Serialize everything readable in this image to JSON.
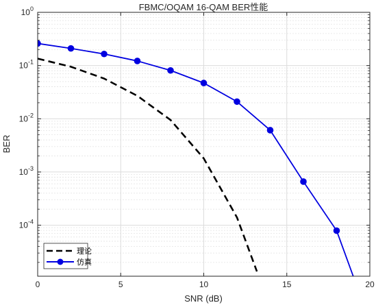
{
  "chart_data": {
    "type": "line",
    "title": "FBMC/OQAM 16-QAM BER性能",
    "xlabel": "SNR (dB)",
    "ylabel": "BER",
    "xlim": [
      0,
      20
    ],
    "ylim": [
      1.1e-05,
      1
    ],
    "yscale": "log",
    "grid": true,
    "legend_position": "bottom-left",
    "x_ticks": [
      0,
      5,
      10,
      15,
      20
    ],
    "y_ticks": [
      {
        "value": 1,
        "base": "10",
        "exp": "0"
      },
      {
        "value": 0.1,
        "base": "10",
        "exp": "-1"
      },
      {
        "value": 0.01,
        "base": "10",
        "exp": "-2"
      },
      {
        "value": 0.001,
        "base": "10",
        "exp": "-3"
      },
      {
        "value": 0.0001,
        "base": "10",
        "exp": "-4"
      }
    ],
    "series": [
      {
        "name": "理论",
        "style": "dashed",
        "color": "#000000",
        "marker": "none",
        "x": [
          0,
          2,
          4,
          6,
          8,
          10,
          12,
          13.2
        ],
        "y": [
          0.135,
          0.095,
          0.057,
          0.027,
          0.0095,
          0.0018,
          0.00014,
          1.35e-05
        ]
      },
      {
        "name": "仿真",
        "style": "solid",
        "color": "#0000e0",
        "marker": "circle",
        "x": [
          0,
          2,
          4,
          6,
          8,
          10,
          12,
          14,
          16,
          18,
          19
        ],
        "y": [
          0.26,
          0.21,
          0.165,
          0.122,
          0.081,
          0.047,
          0.021,
          0.0061,
          0.00066,
          7.9e-05,
          1.1e-05
        ],
        "marker_count": 10
      }
    ]
  }
}
